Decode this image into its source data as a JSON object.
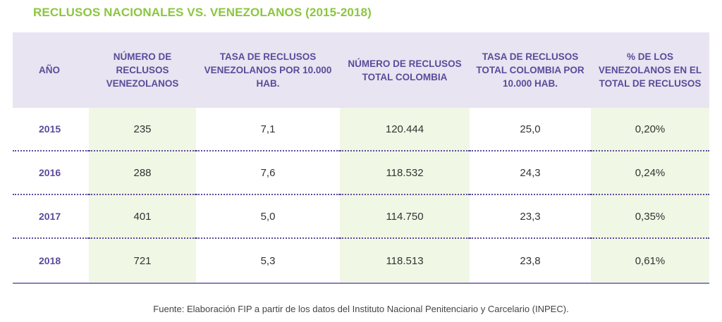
{
  "title": "RECLUSOS NACIONALES VS. VENEZOLANOS (2015-2018)",
  "table": {
    "headers": {
      "year": "AÑO",
      "num_venezolanos": "NÚMERO DE RECLUSOS VENEZOLANOS",
      "tasa_venezolanos": "TASA DE RECLUSOS VENEZOLANOS POR 10.000 HAB.",
      "num_total": "NÚMERO DE RECLUSOS TOTAL COLOMBIA",
      "tasa_total": "TASA DE RECLUSOS TOTAL COLOMBIA POR 10.000 HAB.",
      "porcentaje": "% DE LOS VENEZOLANOS EN EL TOTAL DE RECLUSOS"
    },
    "rows": [
      {
        "year": "2015",
        "num_venezolanos": "235",
        "tasa_venezolanos": "7,1",
        "num_total": "120.444",
        "tasa_total": "25,0",
        "porcentaje": "0,20%"
      },
      {
        "year": "2016",
        "num_venezolanos": "288",
        "tasa_venezolanos": "7,6",
        "num_total": "118.532",
        "tasa_total": "24,3",
        "porcentaje": "0,24%"
      },
      {
        "year": "2017",
        "num_venezolanos": "401",
        "tasa_venezolanos": "5,0",
        "num_total": "114.750",
        "tasa_total": "23,3",
        "porcentaje": "0,35%"
      },
      {
        "year": "2018",
        "num_venezolanos": "721",
        "tasa_venezolanos": "5,3",
        "num_total": "118.513",
        "tasa_total": "23,8",
        "porcentaje": "0,61%"
      }
    ]
  },
  "source": "Fuente: Elaboración FIP a partir de los datos del Instituto Nacional Penitenciario y Carcelario (INPEC).",
  "colors": {
    "title_green": "#8cc63f",
    "header_bg": "#e8e4f1",
    "header_text": "#5c4b9a",
    "shade_bg": "#f1f7e5"
  }
}
